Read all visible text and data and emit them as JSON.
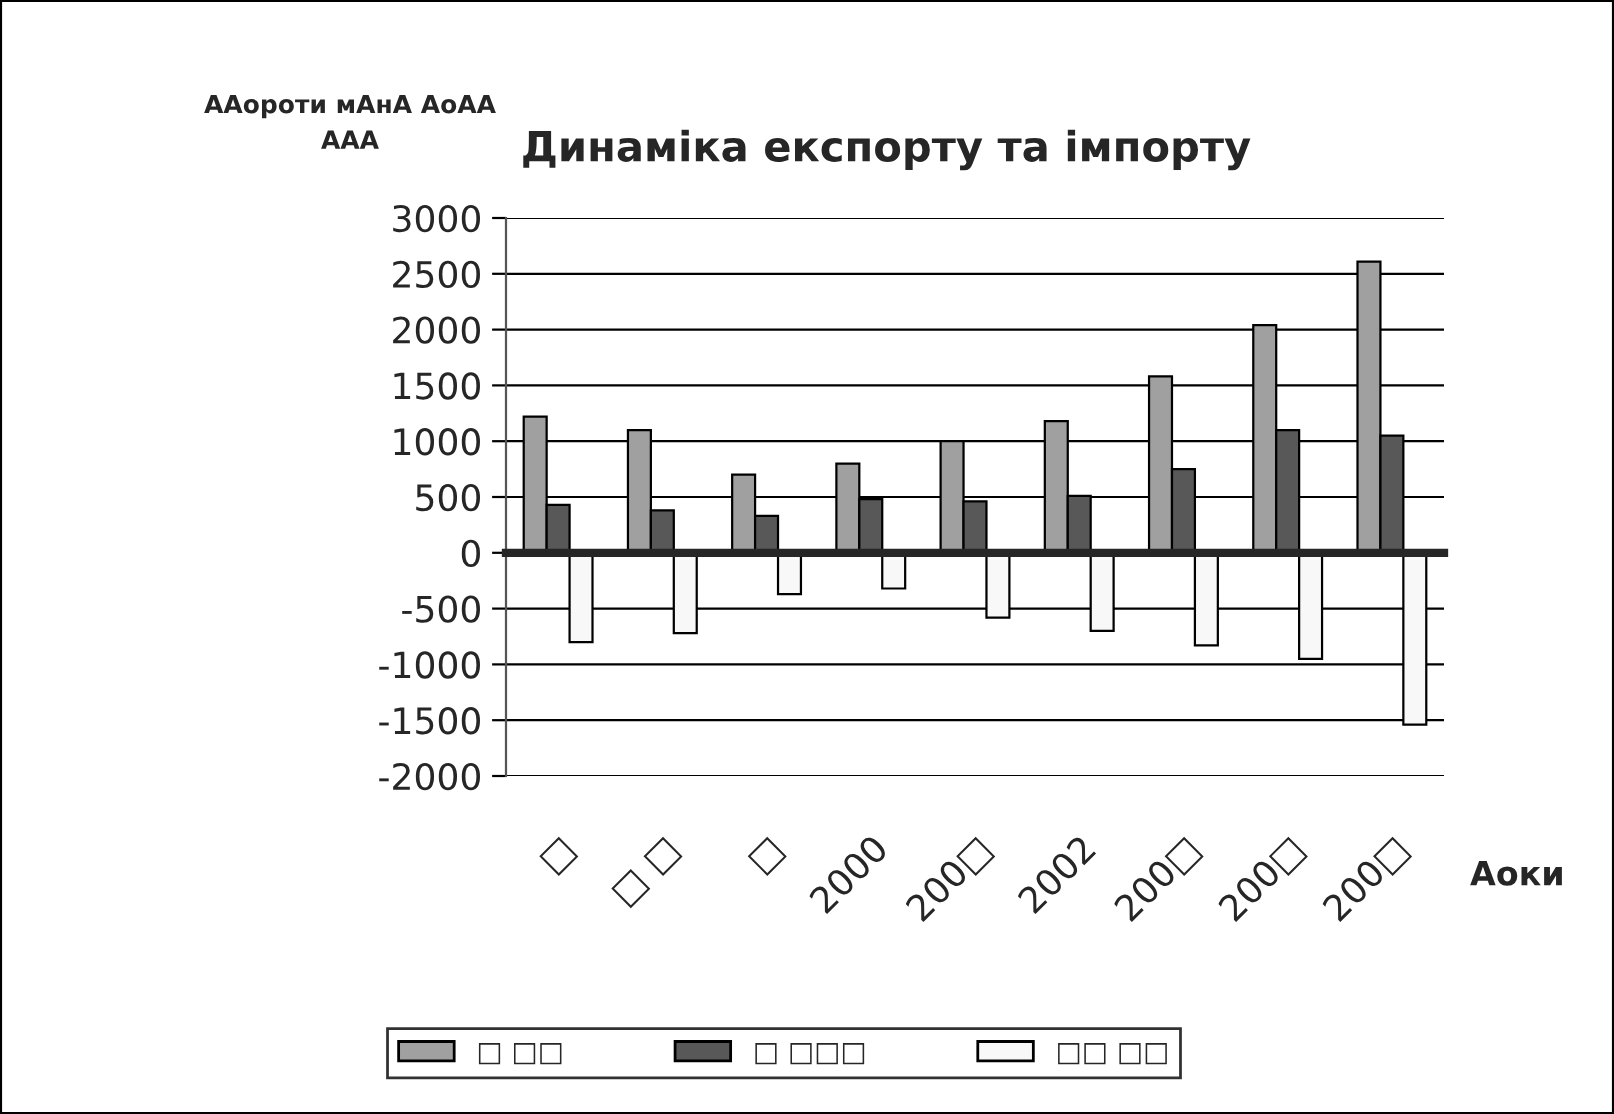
{
  "chart_data": {
    "type": "bar",
    "title": "Динаміка експорту та імпорту",
    "ylabel": "ААороти мАнА АоАА\nААА",
    "xlabel": "Аоки",
    "categories": [
      "□",
      "□ □",
      "□",
      "2000",
      "200□",
      "2002",
      "200□",
      "200□",
      "200□"
    ],
    "series": [
      {
        "name": "□ □□",
        "color": "#a0a0a0",
        "values": [
          1220,
          1100,
          700,
          800,
          1000,
          1180,
          1580,
          2040,
          2610
        ]
      },
      {
        "name": "□ □□□",
        "color": "#585858",
        "values": [
          430,
          380,
          330,
          480,
          460,
          510,
          750,
          1100,
          1050
        ]
      },
      {
        "name": "□□ □□",
        "color": "#f8f8f8",
        "values": [
          -800,
          -720,
          -370,
          -320,
          -580,
          -700,
          -830,
          -950,
          -1540
        ]
      }
    ],
    "ylim": [
      -2000,
      3000
    ],
    "yticks": [
      3000,
      2500,
      2000,
      1500,
      1000,
      500,
      0,
      -500,
      -1000,
      -1500,
      -2000
    ],
    "grid": "y",
    "legend": "bottom"
  }
}
